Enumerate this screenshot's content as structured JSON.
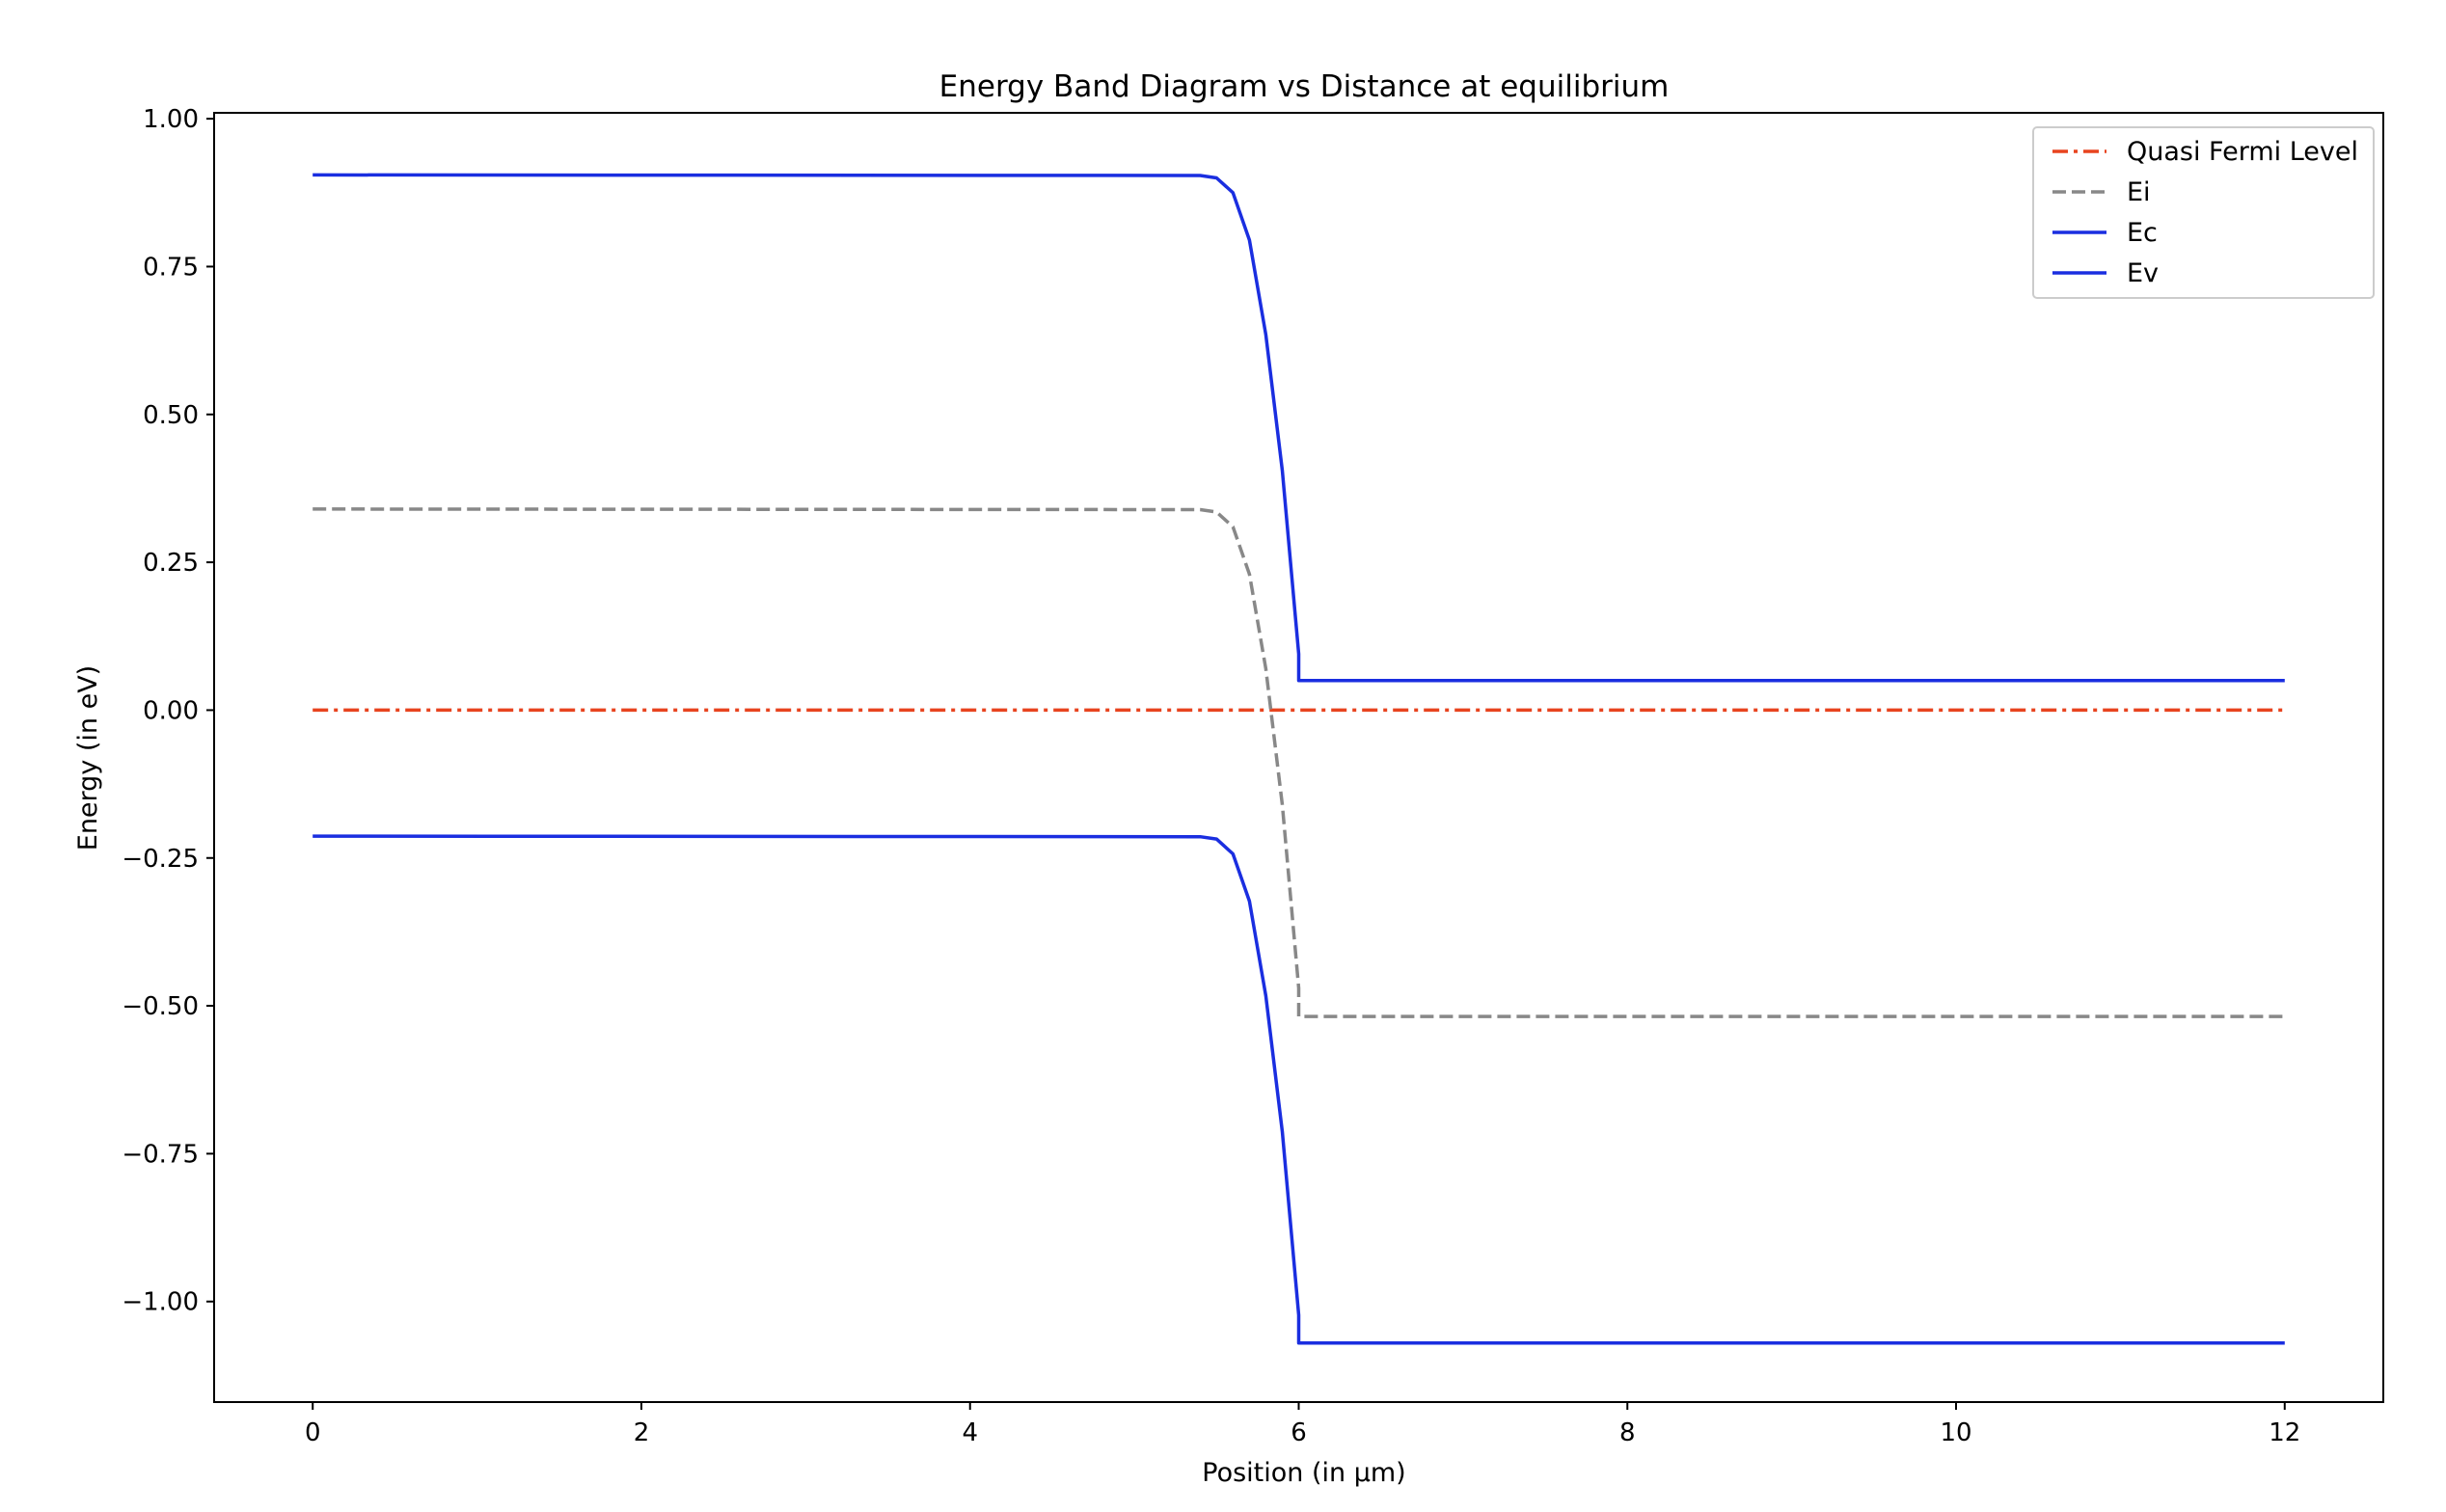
{
  "chart_data": {
    "type": "line",
    "title": "Energy Band Diagram vs Distance at equilibrium",
    "xlabel": "Position (in μm)",
    "ylabel": "Energy (in eV)",
    "xlim": [
      -0.6,
      12.6
    ],
    "ylim": [
      -1.17,
      1.01
    ],
    "xticks": [
      0,
      2,
      4,
      6,
      8,
      10,
      12
    ],
    "xtick_labels": [
      "0",
      "2",
      "4",
      "6",
      "8",
      "10",
      "12"
    ],
    "yticks": [
      1.0,
      0.75,
      0.5,
      0.25,
      0.0,
      -0.25,
      -0.5,
      -0.75,
      -1.0
    ],
    "ytick_labels": [
      "1.00",
      "0.75",
      "0.50",
      "0.25",
      "0.00",
      "−0.25",
      "−0.50",
      "−0.75",
      "−1.00"
    ],
    "grid": false,
    "legend_position": "top-right",
    "series": [
      {
        "name": "Quasi Fermi Level",
        "color": "#e8441f",
        "style": "dashdot",
        "x": [
          0,
          12
        ],
        "y": [
          0.0,
          0.0
        ]
      },
      {
        "name": "Ei",
        "color": "#888888",
        "style": "dashed",
        "x": [
          0,
          5.4,
          5.5,
          5.6,
          5.7,
          5.8,
          5.9,
          6.0,
          6.0001,
          12
        ],
        "y": [
          0.34,
          0.339,
          0.335,
          0.31,
          0.23,
          0.07,
          -0.16,
          -0.47,
          -0.518,
          -0.518
        ]
      },
      {
        "name": "Ec",
        "color": "#1a2ee0",
        "style": "solid",
        "x": [
          0,
          5.4,
          5.5,
          5.6,
          5.7,
          5.8,
          5.9,
          6.0,
          6.0001,
          12
        ],
        "y": [
          0.905,
          0.904,
          0.9,
          0.875,
          0.795,
          0.635,
          0.405,
          0.095,
          0.05,
          0.05
        ]
      },
      {
        "name": "Ev",
        "color": "#1a2ee0",
        "style": "solid",
        "x": [
          0,
          5.4,
          5.5,
          5.6,
          5.7,
          5.8,
          5.9,
          6.0,
          6.0001,
          12
        ],
        "y": [
          -0.213,
          -0.214,
          -0.218,
          -0.243,
          -0.323,
          -0.483,
          -0.713,
          -1.023,
          -1.07,
          -1.07
        ]
      }
    ]
  }
}
